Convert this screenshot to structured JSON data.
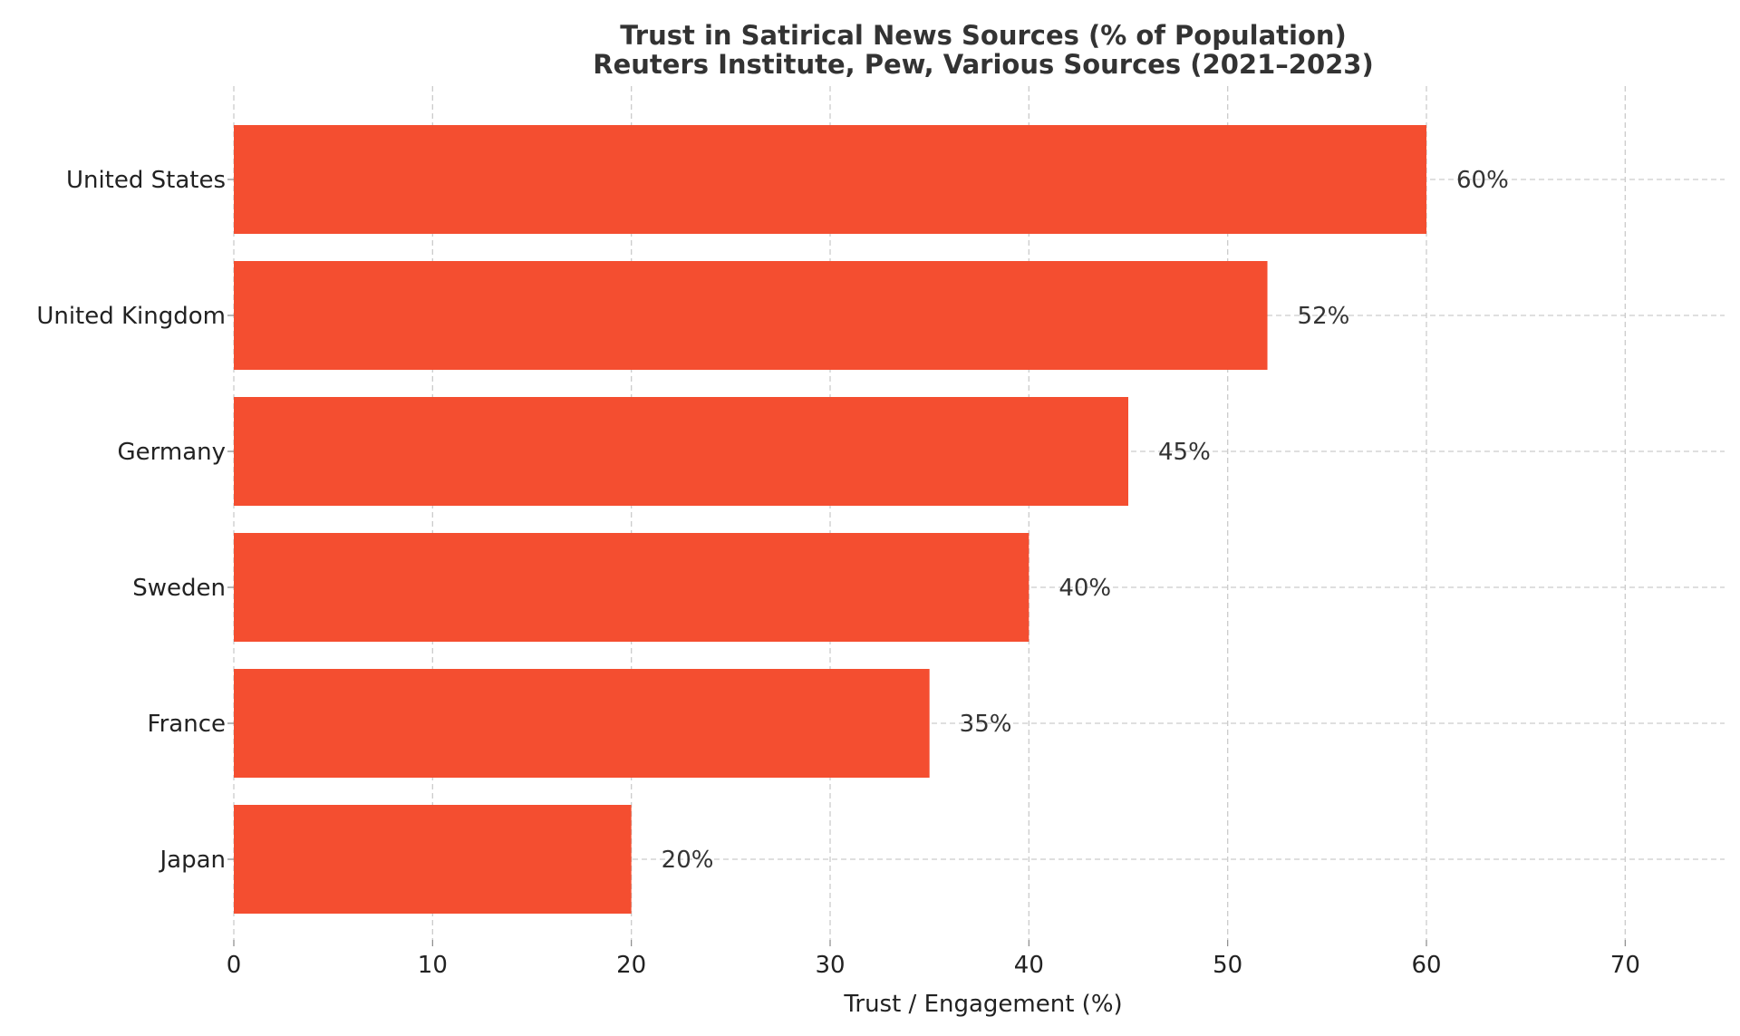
{
  "chart_data": {
    "type": "bar",
    "orientation": "horizontal",
    "title": "Trust in Satirical News Sources (% of Population)",
    "subtitle": "Reuters Institute, Pew, Various Sources (2021–2023)",
    "xlabel": "Trust / Engagement (%)",
    "ylabel": "",
    "categories": [
      "United States",
      "United Kingdom",
      "Germany",
      "Sweden",
      "France",
      "Japan"
    ],
    "values": [
      60,
      52,
      45,
      40,
      35,
      20
    ],
    "data_labels": [
      "60%",
      "52%",
      "45%",
      "40%",
      "35%",
      "20%"
    ],
    "xlim": [
      0,
      75
    ],
    "xticks": [
      0,
      10,
      20,
      30,
      40,
      50,
      60,
      70
    ],
    "grid": true,
    "bar_color": "#f44e30"
  }
}
